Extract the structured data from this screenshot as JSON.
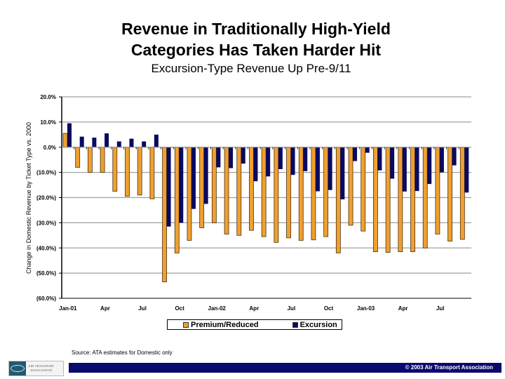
{
  "header": {
    "title_line1": "Revenue in Traditionally High-Yield",
    "title_line2": "Categories Has Taken Harder Hit",
    "subtitle": "Excursion-Type Revenue Up Pre-9/11"
  },
  "chart_data": {
    "type": "bar",
    "title": "Revenue in Traditionally High-Yield Categories Has Taken Harder Hit",
    "subtitle": "Excursion-Type Revenue Up Pre-9/11",
    "xlabel": "",
    "ylabel": "Change in Domestic Revenue by Ticket Type vs. 2000",
    "ylim": [
      -60,
      20
    ],
    "yticks": [
      20,
      10,
      0,
      -10,
      -20,
      -30,
      -40,
      -50,
      -60
    ],
    "ytick_labels": [
      "20.0%",
      "10.0%",
      "0.0%",
      "(10.0%)",
      "(20.0%)",
      "(30.0%)",
      "(40.0%)",
      "(50.0%)",
      "(60.0%)"
    ],
    "grid": true,
    "legend_position": "bottom",
    "categories": [
      "Jan-01",
      "Feb-01",
      "Mar-01",
      "Apr-01",
      "May-01",
      "Jun-01",
      "Jul-01",
      "Aug-01",
      "Sep-01",
      "Oct-01",
      "Nov-01",
      "Dec-01",
      "Jan-02",
      "Feb-02",
      "Mar-02",
      "Apr-02",
      "May-02",
      "Jun-02",
      "Jul-02",
      "Aug-02",
      "Sep-02",
      "Oct-02",
      "Nov-02",
      "Dec-02",
      "Jan-03",
      "Feb-03",
      "Mar-03",
      "Apr-03",
      "May-03",
      "Jun-03",
      "Jul-03",
      "Aug-03",
      "Sep-03"
    ],
    "xtick_labels": [
      {
        "index": 0,
        "label": "Jan-01"
      },
      {
        "index": 3,
        "label": "Apr"
      },
      {
        "index": 6,
        "label": "Jul"
      },
      {
        "index": 9,
        "label": "Oct"
      },
      {
        "index": 12,
        "label": "Jan-02"
      },
      {
        "index": 15,
        "label": "Apr"
      },
      {
        "index": 18,
        "label": "Jul"
      },
      {
        "index": 21,
        "label": "Oct"
      },
      {
        "index": 24,
        "label": "Jan-03"
      },
      {
        "index": 27,
        "label": "Apr"
      },
      {
        "index": 30,
        "label": "Jul"
      }
    ],
    "series": [
      {
        "name": "Premium/Reduced",
        "color": "#F0A030",
        "values": [
          5.5,
          -8,
          -10,
          -10,
          -17.5,
          -19.5,
          -19,
          -20.5,
          -53.5,
          -42,
          -37,
          -32,
          -30,
          -34.5,
          -35,
          -33,
          -35.5,
          -37.8,
          -36,
          -37,
          -36.8,
          -35.5,
          -42,
          -31,
          -33.3,
          -41.5,
          -41.8,
          -41.5,
          -41.5,
          -40,
          -34.5,
          -37.3,
          -36.6
        ]
      },
      {
        "name": "Excursion",
        "color": "#0A0A60",
        "values": [
          9.5,
          4.2,
          3.8,
          5.5,
          2.3,
          3.4,
          2.3,
          5,
          -31.5,
          -30,
          -24.5,
          -22.5,
          -8,
          -8.3,
          -6.5,
          -13.5,
          -11.6,
          -8.7,
          -11,
          -9.5,
          -17.5,
          -17,
          -20.7,
          -5.5,
          -2.2,
          -9.2,
          -12.5,
          -17.6,
          -17.4,
          -14.6,
          -10,
          -7.2,
          -18
        ]
      }
    ]
  },
  "source": "Source: ATA estimates for Domestic only",
  "footer": {
    "logo_line1": "AIR TRANSPORT",
    "logo_line2": "ASSOCIATION",
    "copyright": "© 2003 Air Transport Association"
  }
}
